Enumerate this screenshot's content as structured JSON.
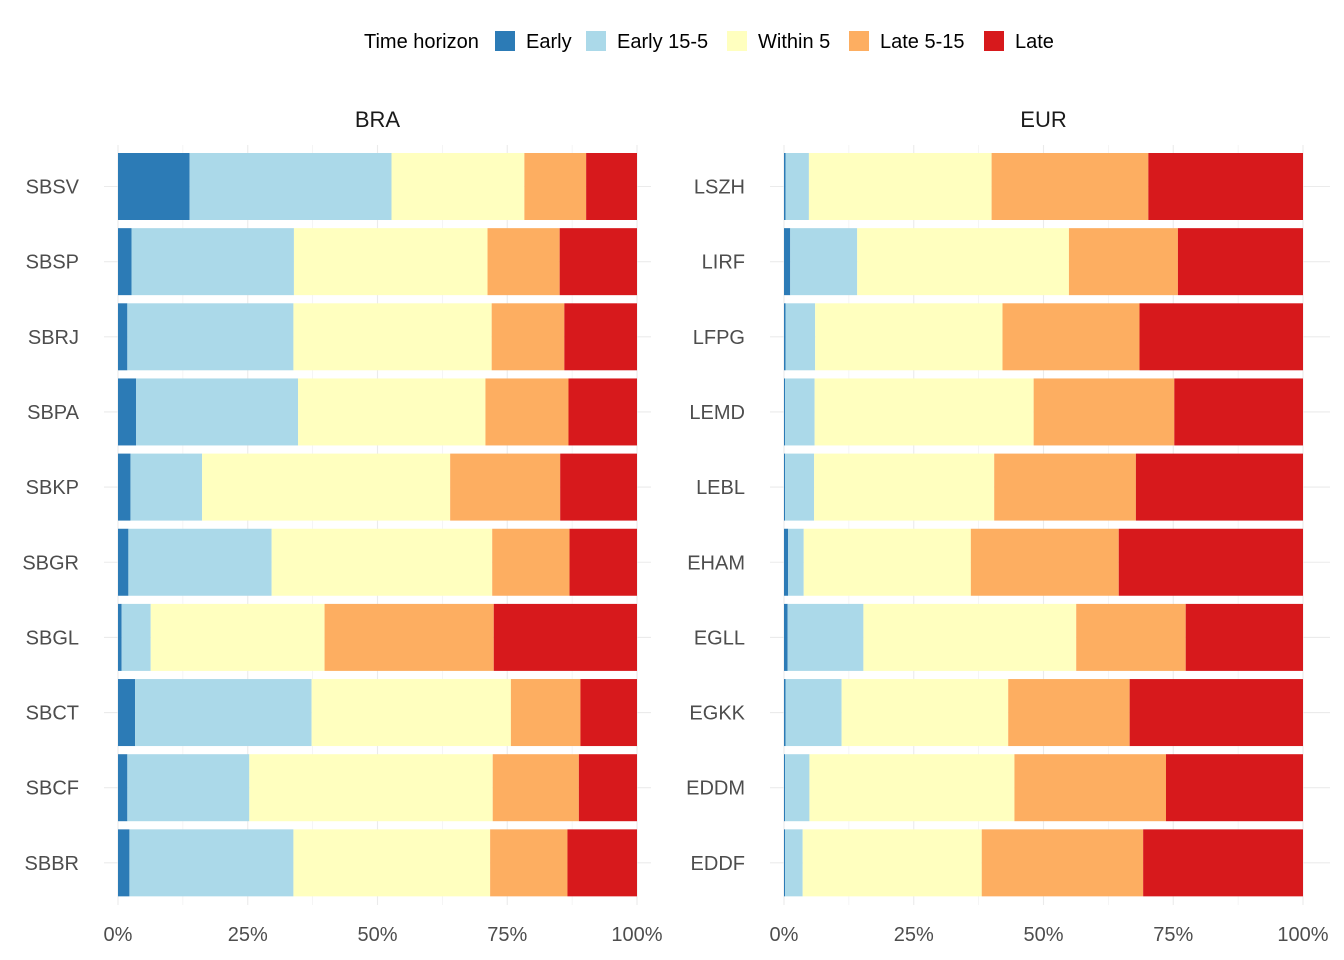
{
  "chart_data": {
    "type": "bar",
    "orientation": "horizontal",
    "stacked": "percent",
    "legend": {
      "title": "Time horizon",
      "position": "top",
      "entries": [
        "Early",
        "Early 15-5",
        "Within 5",
        "Late 5-15",
        "Late"
      ]
    },
    "colors": {
      "Early": "#2c7bb6",
      "Early 15-5": "#abd9e9",
      "Within 5": "#ffffbf",
      "Late 5-15": "#fdae61",
      "Late": "#d7191c"
    },
    "x_ticks": [
      "0%",
      "25%",
      "50%",
      "75%",
      "100%"
    ],
    "xlim": [
      0,
      100
    ],
    "grid": true,
    "panels": [
      {
        "title": "BRA",
        "categories": [
          "SBSV",
          "SBSP",
          "SBRJ",
          "SBPA",
          "SBKP",
          "SBGR",
          "SBGL",
          "SBCT",
          "SBCF",
          "SBBR"
        ],
        "series": [
          {
            "name": "Early",
            "values": [
              13.8,
              2.6,
              1.8,
              3.5,
              2.4,
              2.0,
              0.7,
              3.3,
              1.8,
              2.2
            ]
          },
          {
            "name": "Early 15-5",
            "values": [
              38.9,
              31.3,
              32.0,
              31.2,
              13.8,
              27.6,
              5.6,
              34.0,
              23.5,
              31.6
            ]
          },
          {
            "name": "Within 5",
            "values": [
              25.6,
              37.3,
              38.2,
              36.1,
              47.8,
              42.5,
              33.5,
              38.4,
              46.9,
              37.9
            ]
          },
          {
            "name": "Late 5-15",
            "values": [
              11.9,
              13.9,
              14.0,
              16.0,
              21.2,
              14.9,
              32.6,
              13.4,
              16.6,
              14.9
            ]
          },
          {
            "name": "Late",
            "values": [
              9.8,
              14.9,
              14.0,
              13.2,
              14.8,
              13.0,
              27.6,
              10.9,
              11.2,
              13.4
            ]
          }
        ]
      },
      {
        "title": "EUR",
        "categories": [
          "LSZH",
          "LIRF",
          "LFPG",
          "LEMD",
          "LEBL",
          "EHAM",
          "EGLL",
          "EGKK",
          "EDDM",
          "EDDF"
        ],
        "series": [
          {
            "name": "Early",
            "values": [
              0.3,
              1.2,
              0.3,
              0.2,
              0.2,
              0.8,
              0.7,
              0.3,
              0.2,
              0.2
            ]
          },
          {
            "name": "Early 15-5",
            "values": [
              4.5,
              12.9,
              5.7,
              5.7,
              5.6,
              3.0,
              14.6,
              10.8,
              4.7,
              3.4
            ]
          },
          {
            "name": "Within 5",
            "values": [
              35.2,
              40.8,
              36.1,
              42.2,
              34.7,
              32.2,
              41.0,
              32.1,
              39.5,
              34.5
            ]
          },
          {
            "name": "Late 5-15",
            "values": [
              30.2,
              21.0,
              26.4,
              27.1,
              27.3,
              28.5,
              21.1,
              23.4,
              29.2,
              31.1
            ]
          },
          {
            "name": "Late",
            "values": [
              29.8,
              24.1,
              31.5,
              24.8,
              32.2,
              35.5,
              22.6,
              33.4,
              26.4,
              30.8
            ]
          }
        ]
      }
    ]
  }
}
